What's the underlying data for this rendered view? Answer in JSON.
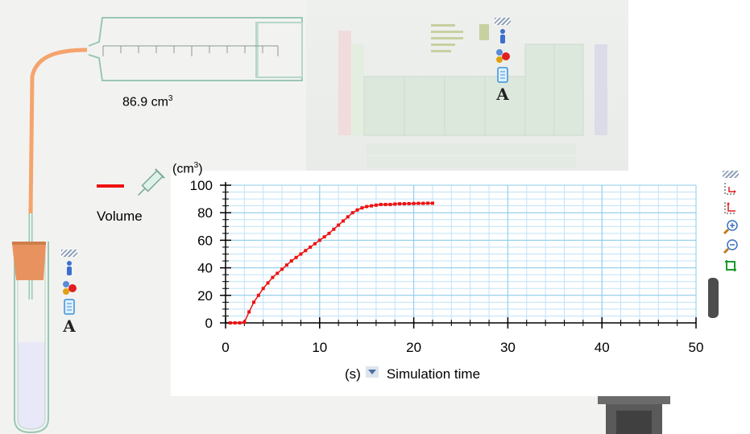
{
  "apparatus": {
    "volume_value": "86.9",
    "volume_unit": "cm",
    "volume_unit_exp": "3"
  },
  "toolbox": {
    "icons": [
      "info-icon",
      "molecule-icon",
      "beaker-icon",
      "text-icon"
    ],
    "text_glyph": "A"
  },
  "chart_toolbox": {
    "icons": [
      "axis-scale-icon",
      "axis-reset-icon",
      "zoom-in-icon",
      "zoom-out-icon",
      "fit-icon"
    ]
  },
  "legend": {
    "label": "Volume",
    "color": "#ee1111"
  },
  "x_axis": {
    "unit": "(s)",
    "label": "Simulation time"
  },
  "y_axis": {
    "unit_prefix": "(cm",
    "unit_exp": "3",
    "unit_suffix": ")"
  },
  "chart_data": {
    "type": "line",
    "title": "",
    "xlabel": "Simulation time",
    "ylabel": "(cm3)",
    "xlim": [
      0,
      50
    ],
    "ylim": [
      0,
      100
    ],
    "xticks": [
      0,
      10,
      20,
      30,
      40,
      50
    ],
    "yticks": [
      0,
      20,
      40,
      60,
      80,
      100
    ],
    "grid": true,
    "series": [
      {
        "name": "Volume",
        "color": "#ee1111",
        "x": [
          0.5,
          1.0,
          1.5,
          2.0,
          2.5,
          3.0,
          3.5,
          4.0,
          4.5,
          5.0,
          5.5,
          6.0,
          6.5,
          7.0,
          7.5,
          8.0,
          8.5,
          9.0,
          9.5,
          10.0,
          10.5,
          11.0,
          11.5,
          12.0,
          12.5,
          13.0,
          13.5,
          14.0,
          14.5,
          15.0,
          15.5,
          16.0,
          16.5,
          17.0,
          17.5,
          18.0,
          18.5,
          19.0,
          19.5,
          20.0,
          20.5,
          21.0,
          21.5,
          22.0
        ],
        "y": [
          0,
          0,
          0,
          0.5,
          8,
          15,
          20,
          25,
          29,
          33,
          36,
          39,
          42,
          45,
          47.5,
          50,
          52.5,
          55,
          57.5,
          60,
          62.5,
          65,
          68,
          71,
          74,
          77,
          80,
          82,
          83.5,
          84.5,
          85,
          85.5,
          86,
          86,
          86,
          86.3,
          86.5,
          86.5,
          86.6,
          86.7,
          86.8,
          86.8,
          86.9,
          86.9
        ]
      }
    ]
  }
}
